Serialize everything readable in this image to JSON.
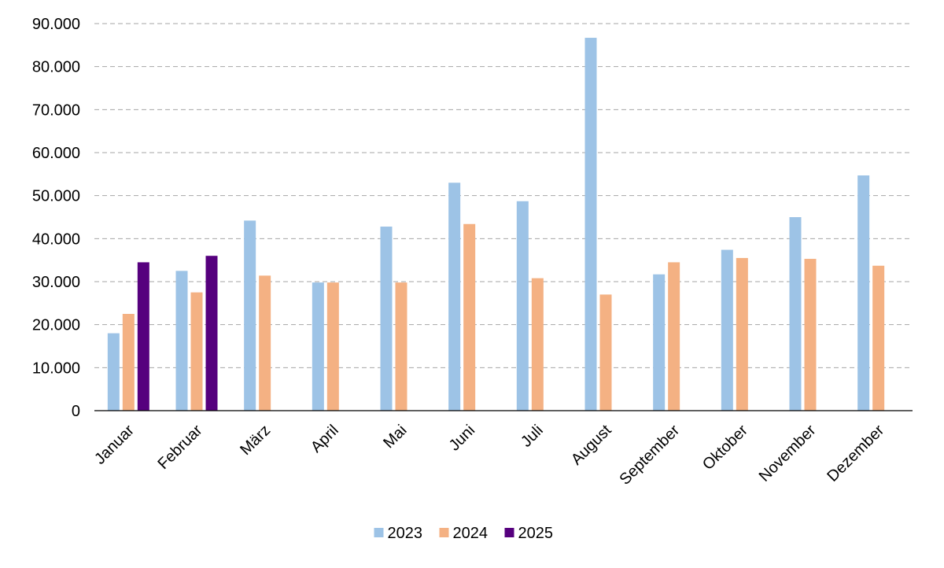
{
  "chart_data": {
    "type": "bar",
    "title": "",
    "xlabel": "",
    "ylabel": "",
    "ylim": [
      0,
      90000
    ],
    "yticks": [
      0,
      10000,
      20000,
      30000,
      40000,
      50000,
      60000,
      70000,
      80000,
      90000
    ],
    "ytick_labels": [
      "0",
      "10.000",
      "20.000",
      "30.000",
      "40.000",
      "50.000",
      "60.000",
      "70.000",
      "80.000",
      "90.000"
    ],
    "grid": "horizontal dashed",
    "legend_position": "bottom",
    "categories": [
      "Januar",
      "Februar",
      "März",
      "April",
      "Mai",
      "Juni",
      "Juli",
      "August",
      "September",
      "Oktober",
      "November",
      "Dezember"
    ],
    "series": [
      {
        "name": "2023",
        "color": "#9dc3e6",
        "values": [
          18000,
          32500,
          44200,
          29800,
          42800,
          53000,
          48700,
          86700,
          31700,
          37400,
          45000,
          54700
        ]
      },
      {
        "name": "2024",
        "color": "#f4b183",
        "values": [
          22500,
          27500,
          31400,
          29800,
          29800,
          43400,
          30800,
          27000,
          34500,
          35500,
          35300,
          33700
        ]
      },
      {
        "name": "2025",
        "color": "#56007e",
        "values": [
          34500,
          36000,
          null,
          null,
          null,
          null,
          null,
          null,
          null,
          null,
          null,
          null
        ]
      }
    ]
  }
}
